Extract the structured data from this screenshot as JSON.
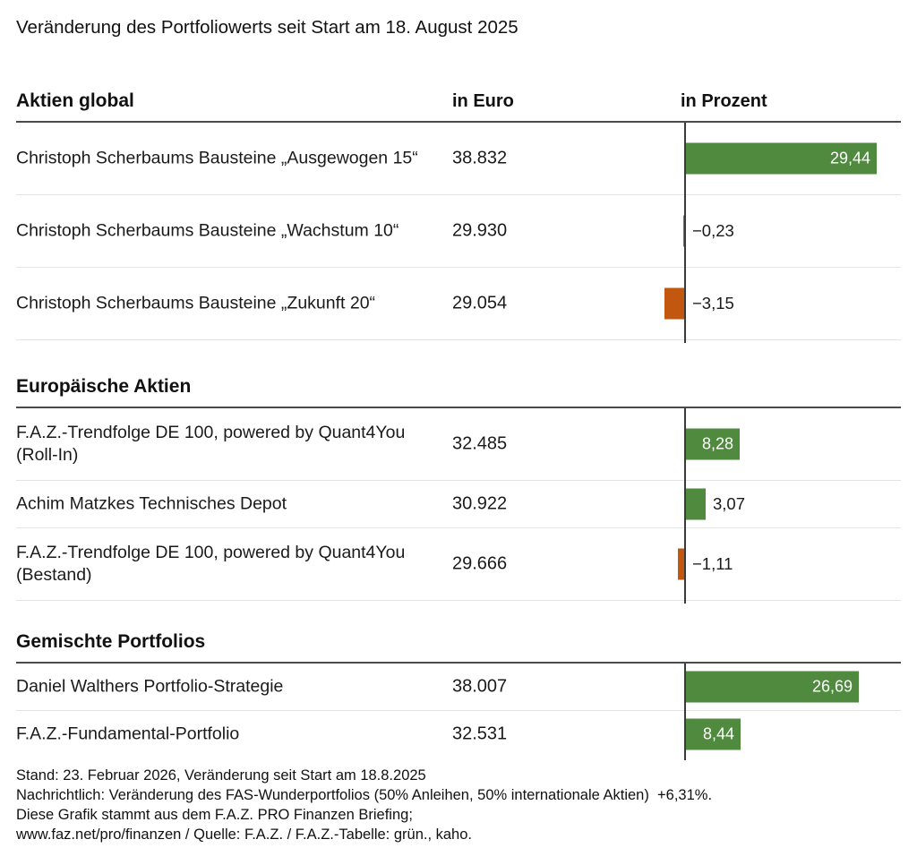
{
  "title": "Veränderung des Portfoliowerts seit Start am 18. August 2025",
  "columns": {
    "euro": "in Euro",
    "percent": "in Prozent"
  },
  "chart_data": {
    "type": "bar",
    "orientation": "horizontal",
    "value_unit": "percent",
    "colors": {
      "positive": "#4f8a3e",
      "negative": "#c25710",
      "zero_axis": "#3a3a3a"
    },
    "legend_position": "none",
    "grid": "row-separators-only",
    "sections": [
      {
        "header": "Aktien global",
        "rows": [
          {
            "label": "Christoph Scherbaums Bausteine „Ausgewogen 15“",
            "euro": "38.832",
            "pct": 29.44,
            "pct_label": "29,44",
            "lines": 2
          },
          {
            "label": "Christoph Scherbaums Bausteine „Wachstum 10“",
            "euro": "29.930",
            "pct": -0.23,
            "pct_label": "−0,23",
            "lines": 2
          },
          {
            "label": "Christoph Scherbaums Bausteine „Zukunft 20“",
            "euro": "29.054",
            "pct": -3.15,
            "pct_label": "−3,15",
            "lines": 2
          }
        ],
        "bottom_rule": true
      },
      {
        "header": "Europäische Aktien",
        "rows": [
          {
            "label": "F.A.Z.-Trendfolge DE 100, powered by Quant4You (Roll-In)",
            "euro": "32.485",
            "pct": 8.28,
            "pct_label": "8,28",
            "lines": 2
          },
          {
            "label": "Achim Matzkes Technisches Depot",
            "euro": "30.922",
            "pct": 3.07,
            "pct_label": "3,07",
            "lines": 1
          },
          {
            "label": "F.A.Z.-Trendfolge DE 100, powered by Quant4You (Bestand)",
            "euro": "29.666",
            "pct": -1.11,
            "pct_label": "−1,11",
            "lines": 2
          }
        ],
        "bottom_rule": true
      },
      {
        "header": "Gemischte Portfolios",
        "rows": [
          {
            "label": "Daniel Walthers Portfolio-Strategie",
            "euro": "38.007",
            "pct": 26.69,
            "pct_label": "26,69",
            "lines": 1
          },
          {
            "label": "F.A.Z.-Fundamental-Portfolio",
            "euro": "32.531",
            "pct": 8.44,
            "pct_label": "8,44",
            "lines": 1
          }
        ],
        "bottom_rule": false
      }
    ]
  },
  "footer": {
    "lines": [
      "Stand: 23. Februar 2026, Veränderung seit Start am 18.8.2025",
      "Nachrichtlich: Veränderung des FAS-Wunderportfolios (50% Anleihen, 50% internationale Aktien)  +6,31%.",
      "Diese Grafik stammt aus dem F.A.Z. PRO Finanzen Briefing;",
      "www.faz.net/pro/finanzen / Quelle: F.A.Z. / F.A.Z.-Tabelle: grün., kaho."
    ]
  }
}
